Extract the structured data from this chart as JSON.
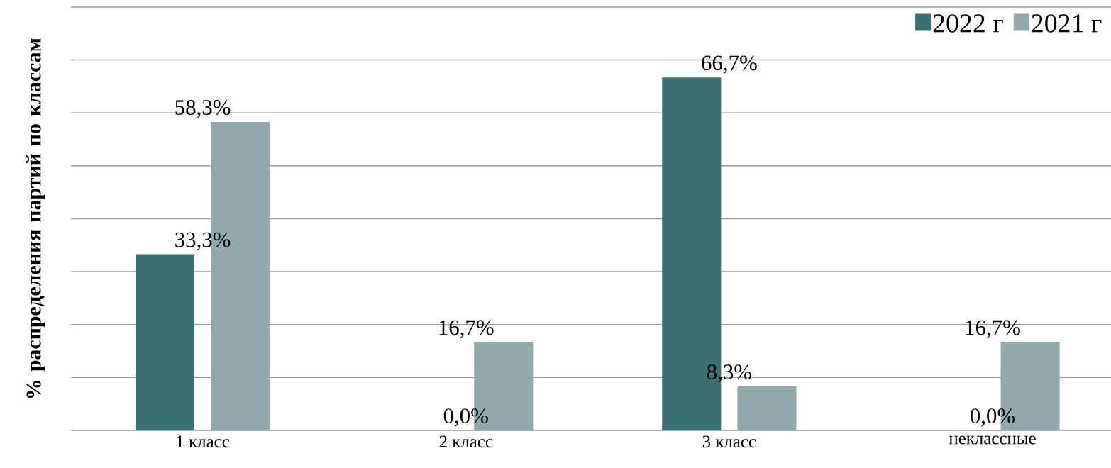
{
  "chart_data": {
    "type": "bar",
    "ylabel": "% распределения партий по классам",
    "categories": [
      "1 класс",
      "2 класс",
      "3 класс",
      "неклассные"
    ],
    "series": [
      {
        "name": "2022 г",
        "color": "#3b7175",
        "values": [
          33.3,
          0,
          66.7,
          0
        ],
        "value_labels": [
          "33,3%",
          "0,0%",
          "66,7%",
          "0,0%"
        ]
      },
      {
        "name": "2021 г",
        "color": "#92aaad",
        "values": [
          58.3,
          16.7,
          8.3,
          16.7
        ],
        "value_labels": [
          "58,3%",
          "16,7%",
          "8,3%",
          "16,7%"
        ]
      }
    ],
    "ylim": [
      0,
      80
    ],
    "yticks": [
      {
        "value": 0,
        "label": null
      },
      {
        "value": 10,
        "label": null
      },
      {
        "value": 20,
        "label": null
      },
      {
        "value": 30,
        "label": null
      },
      {
        "value": 40,
        "label": null
      },
      {
        "value": 50,
        "label": null
      },
      {
        "value": 60,
        "label": null
      },
      {
        "value": 70,
        "label": null
      },
      {
        "value": 80,
        "label": null
      }
    ],
    "grid": "y",
    "legend": "top right",
    "tick_labels": "x"
  }
}
